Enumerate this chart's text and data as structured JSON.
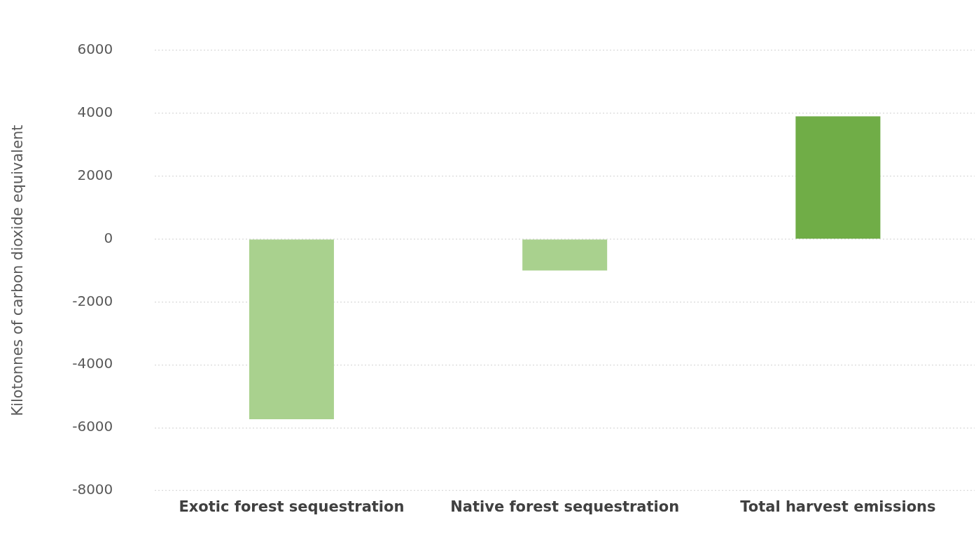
{
  "chart_data": {
    "type": "bar",
    "ylabel": "Kilotonnes of carbon dioxide equivalent",
    "categories": [
      "Exotic forest sequestration",
      "Native forest sequestration",
      "Total harvest emissions"
    ],
    "values": [
      -5730,
      -1000,
      3900
    ],
    "colors": [
      "#a9d18e",
      "#a9d18e",
      "#70ad47"
    ],
    "ylim": [
      -8000,
      6000
    ],
    "yticks": [
      -8000,
      -6000,
      -4000,
      -2000,
      0,
      2000,
      4000,
      6000
    ],
    "grid": "y",
    "legend": false
  }
}
